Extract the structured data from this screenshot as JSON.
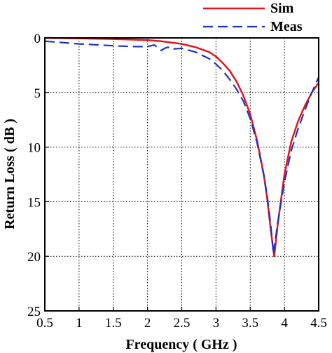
{
  "chart_data": {
    "type": "line",
    "xlabel": "Frequency ( GHz )",
    "ylabel": "Return Loss ( dB )",
    "xlim": [
      0.5,
      4.5
    ],
    "ylim": [
      0,
      25
    ],
    "y_inverted": true,
    "grid": true,
    "legend_position": "top-right",
    "x_ticks": [
      0.5,
      1,
      1.5,
      2,
      2.5,
      3,
      3.5,
      4,
      4.5
    ],
    "x_tick_labels": [
      "0.5",
      "1",
      "1.5",
      "2",
      "2.5",
      "3",
      "3.5",
      "4",
      "4.5"
    ],
    "y_ticks": [
      0,
      5,
      10,
      15,
      20,
      25
    ],
    "y_tick_labels": [
      "0",
      "5",
      "10",
      "15",
      "20",
      "25"
    ],
    "series": [
      {
        "name": "Sim",
        "color": "#e8141b",
        "dash": "solid",
        "x": [
          0.5,
          1.0,
          1.5,
          2.0,
          2.2,
          2.5,
          2.7,
          2.9,
          3.0,
          3.1,
          3.2,
          3.3,
          3.4,
          3.5,
          3.6,
          3.7,
          3.75,
          3.8,
          3.85,
          3.9,
          4.0,
          4.1,
          4.2,
          4.3,
          4.4,
          4.5
        ],
        "y": [
          0.0,
          0.05,
          0.1,
          0.2,
          0.3,
          0.55,
          0.85,
          1.3,
          1.7,
          2.3,
          3.0,
          4.0,
          5.3,
          7.0,
          9.4,
          12.6,
          14.8,
          17.6,
          20.0,
          17.2,
          12.5,
          9.5,
          7.6,
          6.2,
          5.0,
          4.1
        ]
      },
      {
        "name": "Meas",
        "color": "#1c33c4",
        "dash": "dashed",
        "x": [
          0.5,
          0.8,
          1.0,
          1.3,
          1.5,
          1.8,
          2.0,
          2.1,
          2.15,
          2.2,
          2.25,
          2.3,
          2.35,
          2.4,
          2.5,
          2.7,
          2.9,
          3.0,
          3.1,
          3.2,
          3.3,
          3.4,
          3.5,
          3.6,
          3.7,
          3.75,
          3.8,
          3.84,
          3.9,
          4.0,
          4.1,
          4.2,
          4.3,
          4.4,
          4.5
        ],
        "y": [
          0.3,
          0.45,
          0.55,
          0.65,
          0.72,
          0.8,
          0.8,
          0.65,
          0.9,
          1.15,
          0.95,
          0.85,
          1.05,
          1.0,
          0.95,
          1.3,
          1.9,
          2.4,
          3.0,
          3.8,
          4.7,
          5.8,
          7.4,
          9.6,
          12.6,
          14.6,
          17.2,
          19.8,
          17.0,
          13.2,
          10.3,
          8.3,
          6.6,
          5.0,
          3.6
        ]
      }
    ]
  }
}
